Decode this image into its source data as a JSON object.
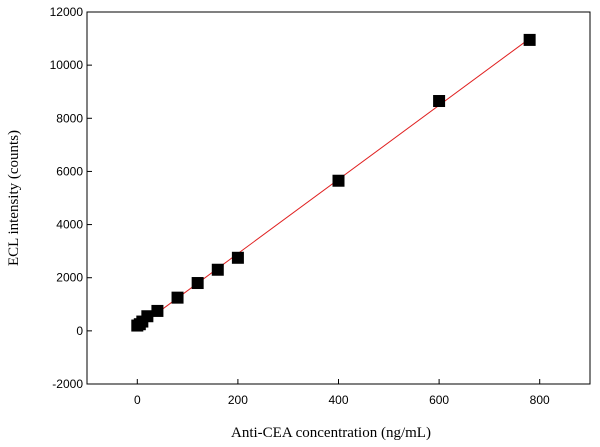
{
  "chart_data": {
    "type": "scatter",
    "title": "",
    "xlabel": "Anti-CEA concentration (ng/mL)",
    "ylabel": "ECL intensity (counts)",
    "xlim": [
      -100,
      900
    ],
    "ylim": [
      -2000,
      12000
    ],
    "xticks": [
      0,
      200,
      400,
      600,
      800
    ],
    "yticks": [
      -2000,
      0,
      2000,
      4000,
      6000,
      8000,
      10000,
      12000
    ],
    "grid": false,
    "legend": "none",
    "series": [
      {
        "x": [
          0,
          5,
          10,
          20,
          40,
          80,
          120,
          160,
          200,
          400,
          600,
          780
        ],
        "y": [
          200,
          250,
          350,
          550,
          750,
          1250,
          1800,
          2300,
          2750,
          5650,
          8650,
          10950
        ],
        "marker": "square",
        "color": "#000000"
      }
    ],
    "fit_line": {
      "x": [
        0,
        780
      ],
      "y": [
        120,
        11000
      ],
      "color": "#e02020"
    }
  }
}
